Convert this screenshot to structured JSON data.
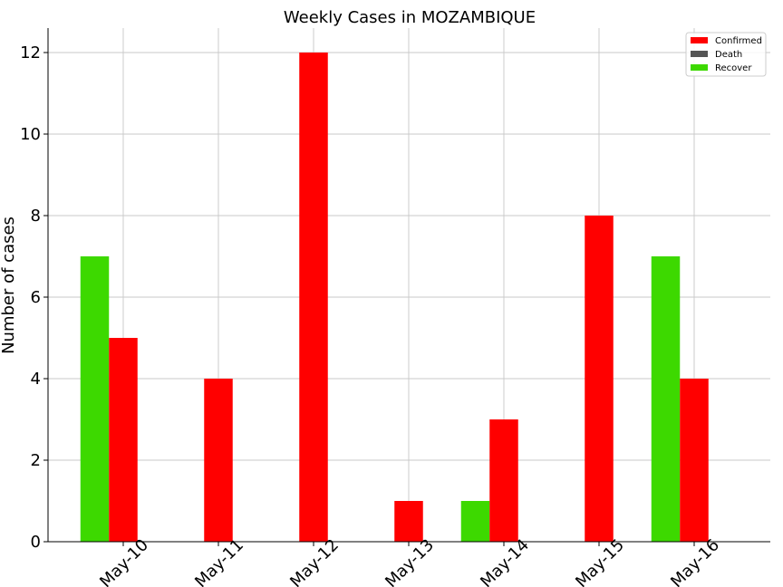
{
  "chart_data": {
    "type": "bar",
    "title": "Weekly Cases in MOZAMBIQUE",
    "xlabel": "",
    "ylabel": "Number of cases",
    "categories": [
      "May-10",
      "May-11",
      "May-12",
      "May-13",
      "May-14",
      "May-15",
      "May-16"
    ],
    "series": [
      {
        "name": "Confirmed",
        "color": "#ff0000",
        "values": [
          5,
          4,
          12,
          1,
          3,
          8,
          4
        ]
      },
      {
        "name": "Death",
        "color": "#555555",
        "values": [
          0,
          0,
          0,
          0,
          0,
          0,
          0
        ]
      },
      {
        "name": "Recover",
        "color": "#3dd900",
        "values": [
          7,
          0,
          0,
          0,
          1,
          0,
          7
        ]
      }
    ],
    "ylim": [
      0,
      12.6
    ],
    "yticks": [
      0,
      2,
      4,
      6,
      8,
      10,
      12
    ],
    "grid": true,
    "legend_position": "top-right"
  }
}
